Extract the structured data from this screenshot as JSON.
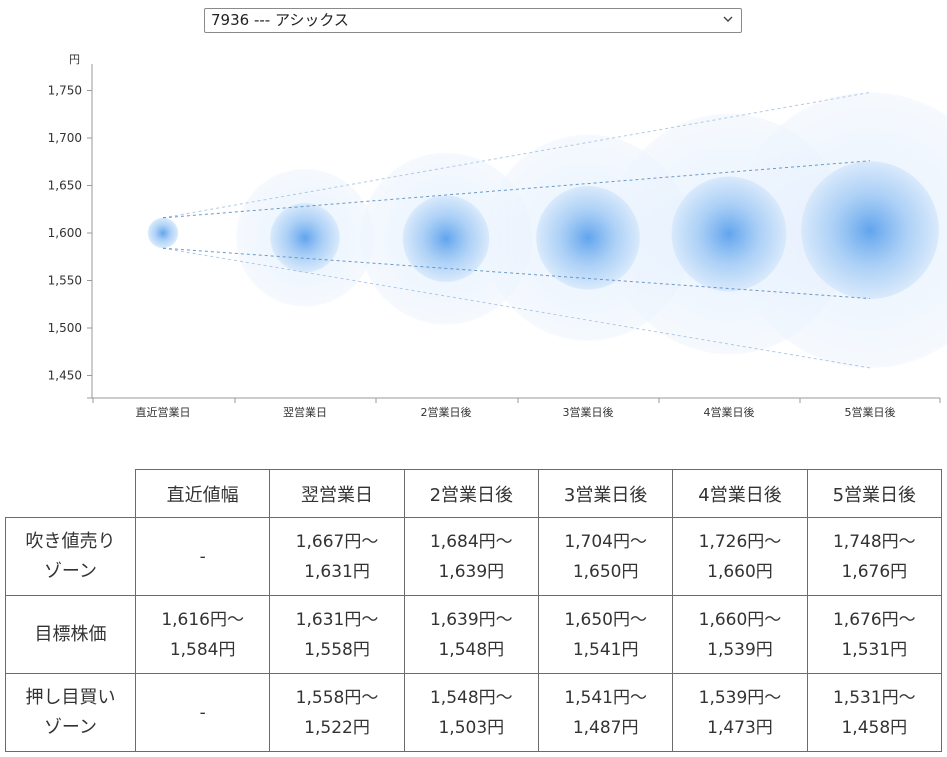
{
  "selector": {
    "value": "7936 --- アシックス"
  },
  "colors": {
    "bubble_center": "#6aa8ee",
    "bubble_edge": "#e8f2fd",
    "axis": "#999999",
    "tick_label": "#333333",
    "dashed_line": "#6a9fd0"
  },
  "chart_data": {
    "type": "bubble-forecast",
    "y_unit_label": "円",
    "ylim": [
      1430,
      1770
    ],
    "yticks": [
      1450,
      1500,
      1550,
      1600,
      1650,
      1700,
      1750
    ],
    "categories": [
      "直近営業日",
      "翌営業日",
      "2営業日後",
      "3営業日後",
      "4営業日後",
      "5営業日後"
    ],
    "center": [
      1600,
      1595,
      1594,
      1595,
      1599,
      1603
    ],
    "target_band": {
      "upper": [
        1616,
        1631,
        1639,
        1650,
        1660,
        1676
      ],
      "lower": [
        1584,
        1558,
        1548,
        1541,
        1539,
        1531
      ]
    },
    "outer_band": {
      "upper": [
        1616,
        1667,
        1684,
        1704,
        1726,
        1748
      ],
      "lower": [
        1584,
        1522,
        1503,
        1487,
        1473,
        1458
      ]
    },
    "grid": false
  },
  "table": {
    "headers": [
      "直近値幅",
      "翌営業日",
      "2営業日後",
      "3営業日後",
      "4営業日後",
      "5営業日後"
    ],
    "rows": [
      {
        "label": [
          "吹き値売り",
          "ゾーン"
        ],
        "cells": [
          [
            "-"
          ],
          [
            "1,667円～",
            "1,631円"
          ],
          [
            "1,684円～",
            "1,639円"
          ],
          [
            "1,704円～",
            "1,650円"
          ],
          [
            "1,726円～",
            "1,660円"
          ],
          [
            "1,748円～",
            "1,676円"
          ]
        ]
      },
      {
        "label": [
          "目標株価"
        ],
        "cells": [
          [
            "1,616円～",
            "1,584円"
          ],
          [
            "1,631円～",
            "1,558円"
          ],
          [
            "1,639円～",
            "1,548円"
          ],
          [
            "1,650円～",
            "1,541円"
          ],
          [
            "1,660円～",
            "1,539円"
          ],
          [
            "1,676円～",
            "1,531円"
          ]
        ]
      },
      {
        "label": [
          "押し目買い",
          "ゾーン"
        ],
        "cells": [
          [
            "-"
          ],
          [
            "1,558円～",
            "1,522円"
          ],
          [
            "1,548円～",
            "1,503円"
          ],
          [
            "1,541円～",
            "1,487円"
          ],
          [
            "1,539円～",
            "1,473円"
          ],
          [
            "1,531円～",
            "1,458円"
          ]
        ]
      }
    ]
  }
}
